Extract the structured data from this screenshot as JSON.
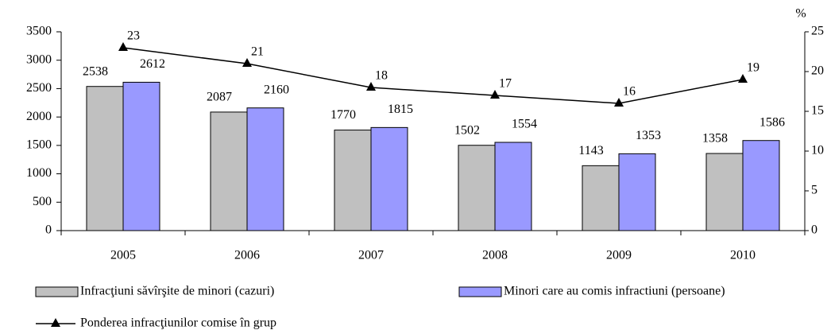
{
  "chart_data": {
    "type": "bar_line",
    "categories": [
      "2005",
      "2006",
      "2007",
      "2008",
      "2009",
      "2010"
    ],
    "series": [
      {
        "name": "Infracţiuni săvîrşite de minori (cazuri)",
        "color": "#c0c0c0",
        "type": "bar",
        "values": [
          2538,
          2087,
          1770,
          1502,
          1143,
          1358
        ]
      },
      {
        "name": "Minori care au comis infractiuni (persoane)",
        "color": "#9999ff",
        "type": "bar",
        "values": [
          2612,
          2160,
          1815,
          1554,
          1353,
          1586
        ]
      },
      {
        "name": "Ponderea infracţiunilor comise în grup",
        "color": "#000000",
        "type": "line",
        "axis": "y2",
        "values": [
          23,
          21,
          18,
          17,
          16,
          19
        ]
      }
    ],
    "ylim": [
      0,
      3500
    ],
    "yticks": [
      0,
      500,
      1000,
      1500,
      2000,
      2500,
      3000,
      3500
    ],
    "y2label": "%",
    "y2lim": [
      0,
      25
    ],
    "y2ticks": [
      0,
      5,
      10,
      15,
      20,
      25
    ]
  }
}
